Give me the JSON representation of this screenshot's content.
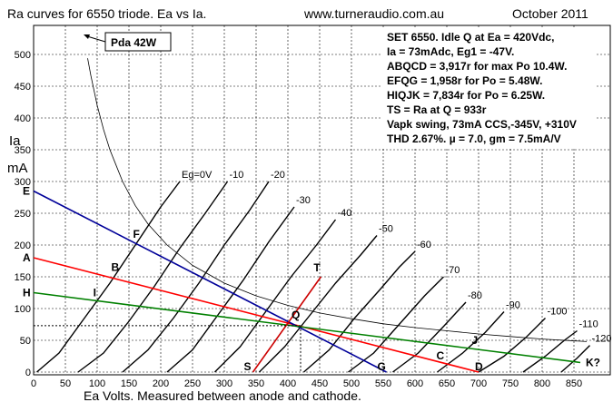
{
  "header": {
    "title": "Ra curves for 6550 triode. Ea vs Ia.",
    "site": "www.turneraudio.com.au",
    "date": "October 2011"
  },
  "pda_label": "Pda 42W",
  "info_box": [
    "SET 6550. Idle Q at Ea = 420Vdc,",
    "Ia = 73mAdc, Eg1 = -47V.",
    "ABQCD = 3,917r for max Po 10.4W.",
    "EFQG = 1,958r for Po = 5.48W.",
    "HIQJK = 7,834r for Po = 6.25W.",
    "TS = Ra at Q = 933r",
    "Vapk swing, 73mA CCS,-345V, +310V",
    "THD 2.67%. µ = 7.0, gm = 7.5mA/V"
  ],
  "axis_text": {
    "y_label_1": "Ia",
    "y_label_2": "mA",
    "x_label": "Ea Volts. Measured between anode and cathode."
  },
  "chart_data": {
    "type": "line",
    "title": "Ra curves for 6550 triode. Ea vs Ia.",
    "xlabel": "Ea Volts. Measured between anode and cathode.",
    "ylabel": "Ia mA",
    "xlim": [
      0,
      900
    ],
    "ylim": [
      0,
      550
    ],
    "xticks": [
      0,
      50,
      100,
      150,
      200,
      250,
      300,
      350,
      400,
      450,
      500,
      550,
      600,
      650,
      700,
      750,
      800,
      850
    ],
    "yticks": [
      0,
      50,
      100,
      150,
      200,
      250,
      300,
      350,
      400,
      450,
      500
    ],
    "grid": true,
    "grid_style": "dashed",
    "valve_curves": [
      {
        "label": "Eg=0V",
        "x": [
          5,
          40,
          80,
          120,
          160,
          200,
          230
        ],
        "y": [
          0,
          30,
          85,
          140,
          200,
          260,
          300
        ]
      },
      {
        "label": "-10",
        "x": [
          70,
          110,
          150,
          190,
          230,
          270,
          305
        ],
        "y": [
          0,
          30,
          80,
          135,
          195,
          250,
          300
        ]
      },
      {
        "label": "-20",
        "x": [
          140,
          180,
          220,
          260,
          300,
          340,
          370
        ],
        "y": [
          0,
          35,
          85,
          140,
          200,
          255,
          300
        ]
      },
      {
        "label": "-30",
        "x": [
          210,
          250,
          290,
          330,
          370,
          410
        ],
        "y": [
          0,
          35,
          90,
          145,
          205,
          260
        ]
      },
      {
        "label": "-40",
        "x": [
          285,
          325,
          365,
          405,
          445,
          475
        ],
        "y": [
          0,
          40,
          95,
          150,
          200,
          240
        ]
      },
      {
        "label": "-50",
        "x": [
          355,
          395,
          435,
          475,
          515,
          540
        ],
        "y": [
          0,
          40,
          90,
          140,
          185,
          215
        ]
      },
      {
        "label": "-60",
        "x": [
          425,
          465,
          505,
          545,
          575,
          600
        ],
        "y": [
          0,
          35,
          85,
          130,
          165,
          190
        ]
      },
      {
        "label": "-70",
        "x": [
          495,
          535,
          575,
          615,
          645
        ],
        "y": [
          0,
          30,
          75,
          120,
          150
        ]
      },
      {
        "label": "-80",
        "x": [
          565,
          605,
          645,
          680
        ],
        "y": [
          0,
          30,
          72,
          110
        ]
      },
      {
        "label": "-90",
        "x": [
          635,
          675,
          710,
          740
        ],
        "y": [
          0,
          30,
          62,
          95
        ]
      },
      {
        "label": "-100",
        "x": [
          700,
          740,
          775,
          805
        ],
        "y": [
          0,
          25,
          55,
          85
        ]
      },
      {
        "label": "-110",
        "x": [
          770,
          805,
          835,
          855
        ],
        "y": [
          0,
          25,
          50,
          65
        ]
      },
      {
        "label": "-120",
        "x": [
          830,
          855,
          875
        ],
        "y": [
          0,
          22,
          42
        ]
      }
    ],
    "pda_curve": {
      "label": "Pda 42W",
      "x": [
        85,
        90,
        100,
        110,
        120,
        140,
        160,
        180,
        210,
        250,
        300,
        350,
        400,
        450,
        500,
        550,
        600,
        650,
        700,
        750,
        800,
        870
      ],
      "y": [
        494,
        467,
        420,
        382,
        350,
        300,
        262,
        233,
        200,
        168,
        140,
        120,
        105,
        93,
        84,
        76,
        70,
        65,
        60,
        56,
        52,
        48
      ]
    },
    "load_lines": [
      {
        "name": "ABQCD",
        "color": "#ff0000",
        "x": [
          0,
          700
        ],
        "y": [
          180,
          0
        ]
      },
      {
        "name": "EFQG",
        "color": "#000099",
        "x": [
          0,
          555
        ],
        "y": [
          285,
          0
        ]
      },
      {
        "name": "HIQJK",
        "color": "#008000",
        "x": [
          0,
          860
        ],
        "y": [
          125,
          15
        ]
      },
      {
        "name": "TS",
        "color": "#cc0000",
        "x": [
          345,
          452
        ],
        "y": [
          0,
          150
        ]
      }
    ],
    "points": [
      {
        "label": "A",
        "x": 0,
        "y": 180
      },
      {
        "label": "B",
        "x": 125,
        "y": 148
      },
      {
        "label": "Q",
        "x": 420,
        "y": 73
      },
      {
        "label": "C",
        "x": 645,
        "y": 14
      },
      {
        "label": "D",
        "x": 700,
        "y": 0
      },
      {
        "label": "E",
        "x": 0,
        "y": 285
      },
      {
        "label": "F",
        "x": 165,
        "y": 200
      },
      {
        "label": "G",
        "x": 555,
        "y": 0
      },
      {
        "label": "H",
        "x": 0,
        "y": 125
      },
      {
        "label": "I",
        "x": 108,
        "y": 111
      },
      {
        "label": "J",
        "x": 695,
        "y": 36
      },
      {
        "label": "K?",
        "x": 860,
        "y": 15
      },
      {
        "label": "T",
        "x": 452,
        "y": 150
      },
      {
        "label": "S",
        "x": 345,
        "y": 0
      }
    ]
  }
}
